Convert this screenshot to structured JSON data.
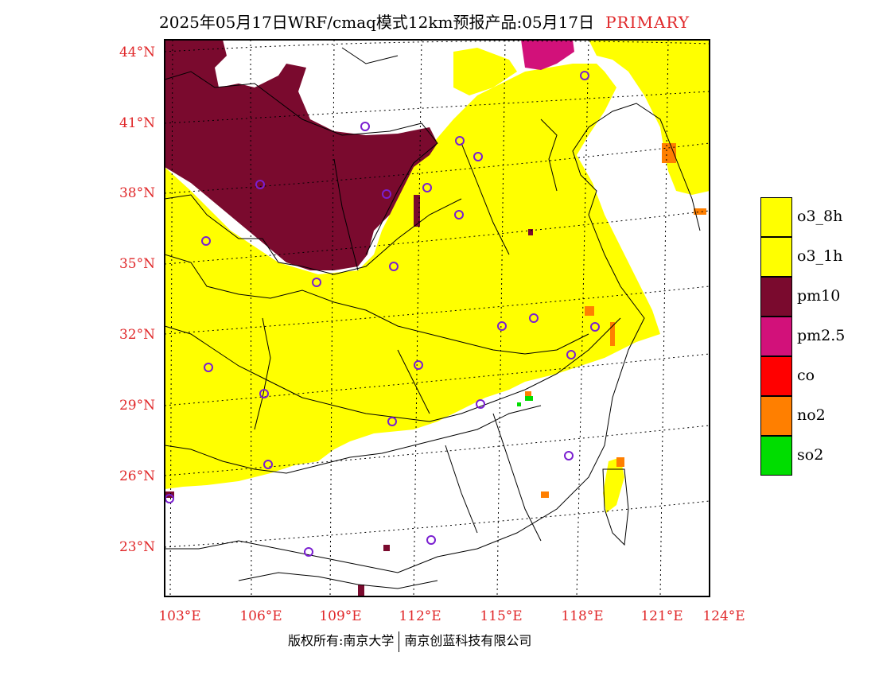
{
  "title": {
    "main": "2025年05月17日WRF/cmaq模式12km预报产品:05月17日",
    "badge": "PRIMARY"
  },
  "map": {
    "lat_labels": [
      "44°N",
      "41°N",
      "38°N",
      "35°N",
      "32°N",
      "29°N",
      "26°N",
      "23°N"
    ],
    "lon_labels": [
      "103°E",
      "106°E",
      "109°E",
      "112°E",
      "115°E",
      "118°E",
      "121°E",
      "124°E"
    ]
  },
  "legend": [
    {
      "label": "o3_8h",
      "color": "#ffff00"
    },
    {
      "label": "o3_1h",
      "color": "#ffff00"
    },
    {
      "label": "pm10",
      "color": "#7a0a2e"
    },
    {
      "label": "pm2.5",
      "color": "#d2117a"
    },
    {
      "label": "co",
      "color": "#ff0000"
    },
    {
      "label": "no2",
      "color": "#ff7f00"
    },
    {
      "label": "so2",
      "color": "#00dd00"
    }
  ],
  "footer": {
    "left": "版权所有:南京大学",
    "right": "南京创蓝科技有限公司"
  }
}
